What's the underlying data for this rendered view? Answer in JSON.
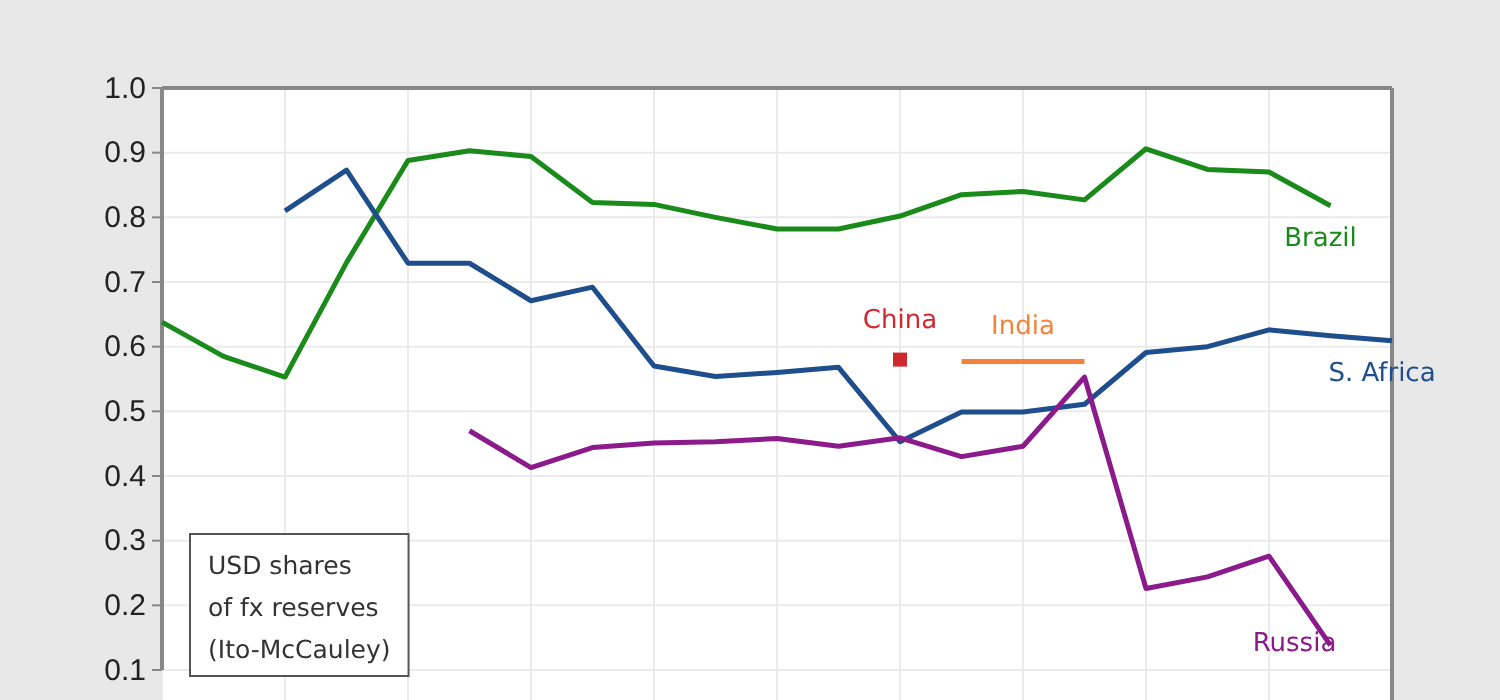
{
  "chart_data": {
    "type": "line",
    "categories": [
      null,
      null,
      null,
      null,
      null,
      null,
      null,
      null,
      null,
      null,
      null,
      null,
      null,
      null,
      null,
      null,
      null,
      null,
      null,
      null,
      null
    ],
    "ylim": [
      0.1,
      1.0
    ],
    "yticks": [
      {
        "value": 0.1,
        "label": "0.1"
      },
      {
        "value": 0.2,
        "label": "0.2"
      },
      {
        "value": 0.3,
        "label": "0.3"
      },
      {
        "value": 0.4,
        "label": "0.4"
      },
      {
        "value": 0.5,
        "label": "0.5"
      },
      {
        "value": 0.6,
        "label": "0.6"
      },
      {
        "value": 0.7,
        "label": "0.7"
      },
      {
        "value": 0.8,
        "label": "0.8"
      },
      {
        "value": 0.9,
        "label": "0.9"
      },
      {
        "value": 1.0,
        "label": "1.0"
      }
    ],
    "grid": true,
    "legend": false,
    "tick_labels": "y",
    "series": [
      {
        "name": "Brazil",
        "color": "#1a8a1a",
        "values": [
          0.638,
          0.585,
          0.553,
          0.73,
          0.888,
          0.903,
          0.894,
          0.823,
          0.82,
          0.8,
          0.782,
          0.782,
          0.802,
          0.835,
          0.84,
          0.827,
          0.906,
          0.874,
          0.87,
          0.818,
          null
        ]
      },
      {
        "name": "S. Africa",
        "color": "#1f4e8c",
        "values": [
          null,
          null,
          0.81,
          0.873,
          0.729,
          0.729,
          0.671,
          0.692,
          0.57,
          0.554,
          0.56,
          0.568,
          0.453,
          0.499,
          0.499,
          0.511,
          0.591,
          0.6,
          0.626,
          0.617,
          0.609
        ]
      },
      {
        "name": "Russia",
        "color": "#8b1a8b",
        "values": [
          null,
          null,
          null,
          null,
          null,
          0.47,
          0.413,
          0.444,
          0.451,
          0.453,
          0.458,
          0.446,
          0.459,
          0.43,
          0.446,
          0.553,
          0.226,
          0.244,
          0.276,
          0.138,
          null
        ]
      },
      {
        "name": "China",
        "color": "#d0282e",
        "type": "scatter",
        "marker": "square",
        "values": [
          null,
          null,
          null,
          null,
          null,
          null,
          null,
          null,
          null,
          null,
          null,
          null,
          0.58,
          null,
          null,
          null,
          null,
          null,
          null,
          null,
          null
        ]
      },
      {
        "name": "India",
        "color": "#f4823a",
        "values": [
          null,
          null,
          null,
          null,
          null,
          null,
          null,
          null,
          null,
          null,
          null,
          null,
          null,
          0.577,
          0.577,
          0.577,
          null,
          null,
          null,
          null,
          null
        ]
      }
    ],
    "annotations": [
      "USD shares\nof fx reserves\n(Ito-McCauley)"
    ]
  }
}
